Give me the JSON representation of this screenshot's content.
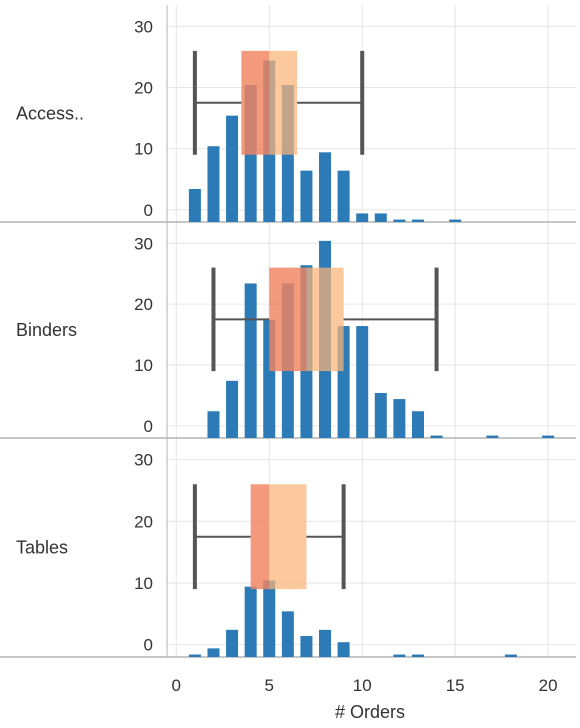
{
  "chart_data": {
    "type": "bar",
    "subtype": "histogram-with-box-plot-per-category",
    "xlabel": "# Orders",
    "x_ticks": [
      "0",
      "5",
      "10",
      "15",
      "20"
    ],
    "xlim": [
      -0.5,
      21.5
    ],
    "y_ticks": [
      "0",
      "10",
      "20",
      "30"
    ],
    "ylim": [
      -2,
      33.5
    ],
    "grid": true,
    "colors": {
      "bars": "#2c7bb6",
      "box_lower": "#f0825f",
      "box_upper": "#fbb478",
      "whisker": "#555555",
      "grid": "#e6e6e6",
      "divider": "#b3b3b3"
    },
    "rows": [
      {
        "label": "Access..",
        "histogram": [
          {
            "x": 1,
            "count": 6
          },
          {
            "x": 2,
            "count": 13
          },
          {
            "x": 3,
            "count": 18
          },
          {
            "x": 4,
            "count": 23
          },
          {
            "x": 5,
            "count": 27
          },
          {
            "x": 6,
            "count": 23
          },
          {
            "x": 7,
            "count": 9
          },
          {
            "x": 8,
            "count": 12
          },
          {
            "x": 9,
            "count": 9
          },
          {
            "x": 10,
            "count": 2
          },
          {
            "x": 11,
            "count": 2
          },
          {
            "x": 12,
            "count": 1
          },
          {
            "x": 13,
            "count": 1
          },
          {
            "x": 15,
            "count": 1
          }
        ],
        "box": {
          "whisker_low": 1,
          "q1": 3.5,
          "median": 5,
          "q3": 6.5,
          "whisker_high": 10,
          "top": 26,
          "bottom": 9
        }
      },
      {
        "label": "Binders",
        "histogram": [
          {
            "x": 2,
            "count": 5
          },
          {
            "x": 3,
            "count": 10
          },
          {
            "x": 4,
            "count": 26
          },
          {
            "x": 5,
            "count": 20
          },
          {
            "x": 6,
            "count": 26
          },
          {
            "x": 7,
            "count": 29
          },
          {
            "x": 8,
            "count": 33
          },
          {
            "x": 9,
            "count": 19
          },
          {
            "x": 10,
            "count": 19
          },
          {
            "x": 11,
            "count": 8
          },
          {
            "x": 12,
            "count": 7
          },
          {
            "x": 13,
            "count": 5
          },
          {
            "x": 14,
            "count": 1
          },
          {
            "x": 17,
            "count": 1
          },
          {
            "x": 20,
            "count": 1
          }
        ],
        "box": {
          "whisker_low": 2,
          "q1": 5,
          "median": 7,
          "q3": 9,
          "whisker_high": 14,
          "top": 26,
          "bottom": 9
        }
      },
      {
        "label": "Tables",
        "histogram": [
          {
            "x": 1,
            "count": 1
          },
          {
            "x": 2,
            "count": 2
          },
          {
            "x": 3,
            "count": 5
          },
          {
            "x": 4,
            "count": 12
          },
          {
            "x": 5,
            "count": 13
          },
          {
            "x": 6,
            "count": 8
          },
          {
            "x": 7,
            "count": 4
          },
          {
            "x": 8,
            "count": 5
          },
          {
            "x": 9,
            "count": 3
          },
          {
            "x": 12,
            "count": 1
          },
          {
            "x": 13,
            "count": 1
          },
          {
            "x": 18,
            "count": 1
          }
        ],
        "box": {
          "whisker_low": 1,
          "q1": 4,
          "median": 5,
          "q3": 7,
          "whisker_high": 9,
          "top": 26,
          "bottom": 9
        }
      }
    ]
  }
}
